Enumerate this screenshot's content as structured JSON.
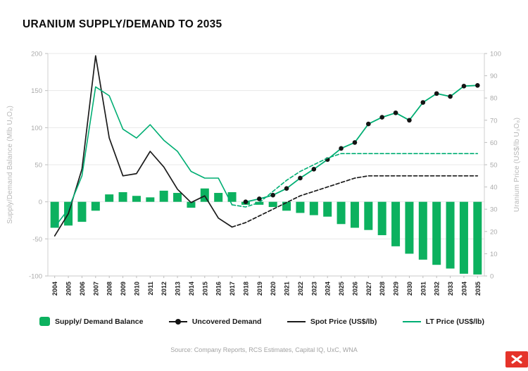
{
  "page": {
    "title": "URANIUM SUPPLY/DEMAND TO 2035",
    "source": "Source: Company Reports, RCS Estimates, Capital IQ, UxC, WNA"
  },
  "brand": {
    "logo_color": "#E5332A"
  },
  "chart_data": {
    "type": "bar",
    "subtype": "combo-bar-line",
    "title": "URANIUM SUPPLY/DEMAND TO 2035",
    "grid": true,
    "legend_position": "bottom",
    "categories": [
      2004,
      2005,
      2006,
      2007,
      2008,
      2009,
      2010,
      2011,
      2012,
      2013,
      2014,
      2015,
      2016,
      2017,
      2018,
      2019,
      2020,
      2021,
      2022,
      2023,
      2024,
      2025,
      2026,
      2027,
      2028,
      2029,
      2030,
      2031,
      2032,
      2033,
      2034,
      2035
    ],
    "left_axis": {
      "label": "Supply/Demand Balance (Mlb U₃O₈)",
      "min": -100,
      "max": 200,
      "tick_step": 50
    },
    "right_axis": {
      "label": "Uranium Price (US$/lb U₃O₈)",
      "min": 0,
      "max": 100,
      "tick_step": 10
    },
    "series": [
      {
        "id": "supply-demand-balance",
        "name": "Supply/ Demand Balance",
        "type": "bar",
        "axis": "left",
        "color": "#0CB15F",
        "values": [
          -35,
          -32,
          -27,
          -12,
          10,
          13,
          8,
          6,
          15,
          12,
          -8,
          18,
          12,
          13,
          -4,
          -4,
          -7,
          -12,
          -15,
          -18,
          -20,
          -30,
          -35,
          -38,
          -45,
          -60,
          -70,
          -78,
          -85,
          -90,
          -97,
          -98
        ]
      },
      {
        "id": "uncovered-demand",
        "name": "Uncovered Demand",
        "type": "line",
        "axis": "left",
        "color": "#00AE73",
        "width": 1.8,
        "markers": true,
        "marker_color": "#141414",
        "values": [
          null,
          null,
          null,
          null,
          null,
          null,
          null,
          null,
          null,
          null,
          null,
          null,
          null,
          null,
          0,
          4,
          9,
          18,
          32,
          44,
          57,
          72,
          80,
          105,
          114,
          120,
          110,
          134,
          146,
          142,
          156,
          157
        ]
      },
      {
        "id": "spot-price",
        "name": "Spot Price (US$/lb)",
        "type": "line",
        "axis": "right",
        "color": "#1B1B1B",
        "width": 1.7,
        "dash_from_index": 13,
        "values": [
          18,
          28,
          48,
          99,
          62,
          45,
          46,
          56,
          49,
          39,
          33,
          36,
          26,
          22,
          24,
          27,
          30,
          33,
          36,
          38,
          40,
          42,
          44,
          45,
          45,
          45,
          45,
          45,
          45,
          45,
          45,
          45
        ]
      },
      {
        "id": "lt-price",
        "name": "LT Price (US$/lb)",
        "type": "line",
        "axis": "right",
        "color": "#00AE73",
        "width": 1.6,
        "dash_from_index": 13,
        "values": [
          22,
          30,
          45,
          85,
          81,
          66,
          62,
          68,
          61,
          56,
          47,
          44,
          44,
          32,
          31,
          33,
          38,
          43,
          47,
          50,
          53,
          55,
          55,
          55,
          55,
          55,
          55,
          55,
          55,
          55,
          55,
          55
        ]
      }
    ]
  }
}
